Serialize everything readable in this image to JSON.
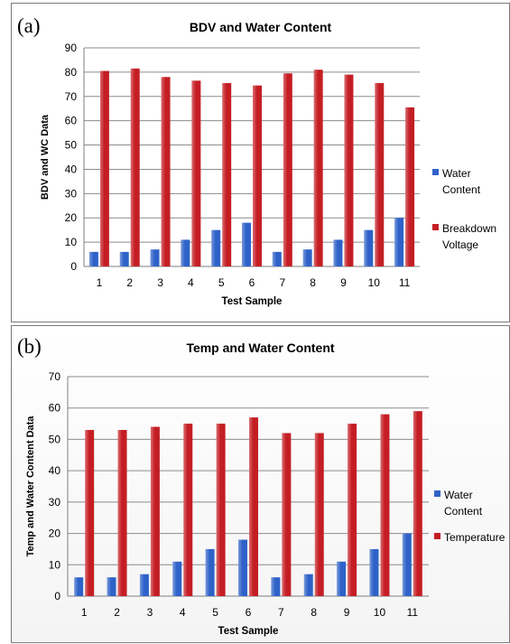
{
  "panels": {
    "a": {
      "letter": "(a)"
    },
    "b": {
      "letter": "(b)"
    }
  },
  "chart_data": [
    {
      "type": "bar",
      "title": "BDV and Water Content",
      "xlabel": "Test Sample",
      "ylabel": "BDV and WC Data",
      "categories": [
        "1",
        "2",
        "3",
        "4",
        "5",
        "6",
        "7",
        "8",
        "9",
        "10",
        "11"
      ],
      "ylim": [
        0,
        90
      ],
      "yticks": [
        0,
        10,
        20,
        30,
        40,
        50,
        60,
        70,
        80,
        90
      ],
      "grid": true,
      "legend_position": "right",
      "series": [
        {
          "name": "Water Content",
          "color": "#2f62c8",
          "values": [
            6,
            6,
            7,
            11,
            15,
            18,
            6,
            7,
            11,
            15,
            20
          ]
        },
        {
          "name": "Breakdown Voltage",
          "color": "#c41e24",
          "values": [
            80.5,
            81.5,
            78,
            76.5,
            75.5,
            74.5,
            79.5,
            81,
            79,
            75.5,
            65.5
          ]
        }
      ]
    },
    {
      "type": "bar",
      "title": "Temp and Water Content",
      "xlabel": "Test Sample",
      "ylabel": "Temp and Water Content Data",
      "categories": [
        "1",
        "2",
        "3",
        "4",
        "5",
        "6",
        "7",
        "8",
        "9",
        "10",
        "11"
      ],
      "ylim": [
        0,
        70
      ],
      "yticks": [
        0,
        10,
        20,
        30,
        40,
        50,
        60,
        70
      ],
      "grid": true,
      "legend_position": "right",
      "series": [
        {
          "name": "Water Content",
          "color": "#2f62c8",
          "values": [
            6,
            6,
            7,
            11,
            15,
            18,
            6,
            7,
            11,
            15,
            20
          ]
        },
        {
          "name": "Temperature",
          "color": "#c41e24",
          "values": [
            53,
            53,
            54,
            55,
            55,
            57,
            52,
            52,
            55,
            58,
            59
          ]
        }
      ]
    }
  ]
}
